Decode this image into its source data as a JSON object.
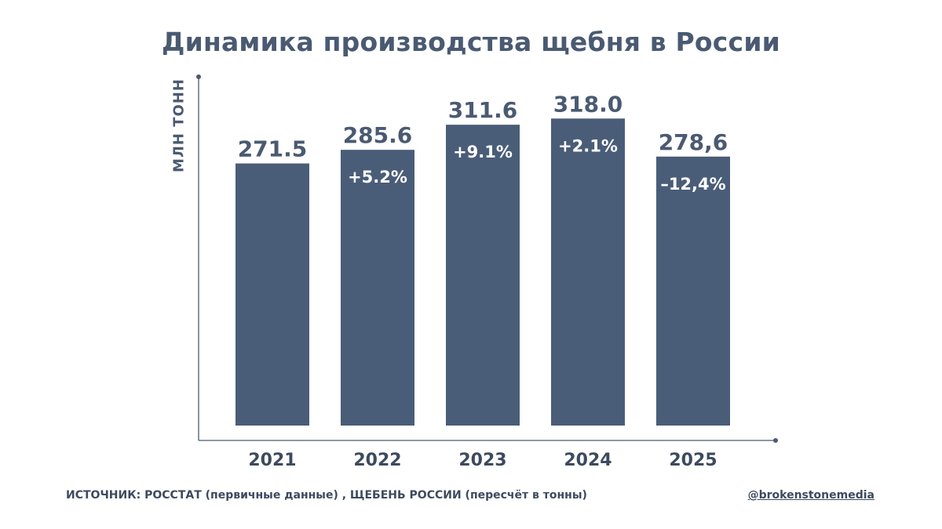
{
  "chart_data": {
    "type": "bar",
    "title": "Динамика производства щебня в России",
    "ylabel": "МЛН ТОНН",
    "xlabel": "",
    "categories": [
      "2021",
      "2022",
      "2023",
      "2024",
      "2025"
    ],
    "values": [
      271.5,
      285.6,
      311.6,
      318.0,
      278.6
    ],
    "value_labels": [
      "271.5",
      "285.6",
      "311.6",
      "318.0",
      "278,6"
    ],
    "change_labels": [
      "",
      "+5.2%",
      "+9.1%",
      "+2.1%",
      "–12,4%"
    ],
    "ylim": [
      0,
      345
    ],
    "grid": false,
    "bar_color": "#4a5d78"
  },
  "footer": {
    "source": "ИСТОЧНИК: РОССТАТ (первичные данные) , ЩЕБЕНЬ РОССИИ (пересчёт в тонны)",
    "handle": "@brokenstonemedia"
  }
}
